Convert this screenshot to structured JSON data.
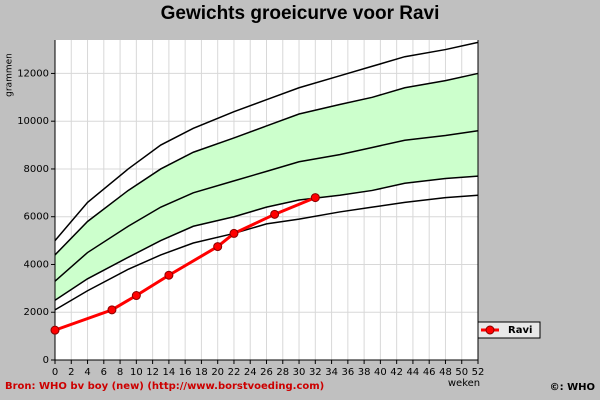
{
  "chart_data": {
    "type": "line",
    "title": "Gewichts groeicurve voor Ravi",
    "x_label": "weken",
    "y_label": "grammen",
    "xlim": [
      0,
      52
    ],
    "ylim": [
      0,
      13400
    ],
    "xticks": [
      0,
      2,
      4,
      6,
      8,
      10,
      12,
      14,
      16,
      18,
      20,
      22,
      24,
      26,
      28,
      30,
      32,
      34,
      36,
      38,
      40,
      42,
      44,
      46,
      48,
      50,
      52
    ],
    "yticks": [
      0,
      2000,
      4000,
      6000,
      8000,
      10000,
      12000
    ],
    "grid": true,
    "legend": "right",
    "band_color": "#ccffcc",
    "reference_curves": [
      {
        "color": "#000000",
        "x": [
          0,
          4,
          9,
          13,
          17,
          22,
          26,
          30,
          35,
          39,
          43,
          48,
          52
        ],
        "values": [
          5000,
          6600,
          8000,
          9000,
          9700,
          10400,
          10900,
          11400,
          11900,
          12300,
          12700,
          13000,
          13300
        ]
      },
      {
        "color": "#000000",
        "x": [
          0,
          4,
          9,
          13,
          17,
          22,
          26,
          30,
          35,
          39,
          43,
          48,
          52
        ],
        "values": [
          4400,
          5800,
          7100,
          8000,
          8700,
          9300,
          9800,
          10300,
          10700,
          11000,
          11400,
          11700,
          12000
        ]
      },
      {
        "color": "#000000",
        "x": [
          0,
          4,
          9,
          13,
          17,
          22,
          26,
          30,
          35,
          39,
          43,
          48,
          52
        ],
        "values": [
          3300,
          4500,
          5600,
          6400,
          7000,
          7500,
          7900,
          8300,
          8600,
          8900,
          9200,
          9400,
          9600
        ]
      },
      {
        "color": "#000000",
        "x": [
          0,
          4,
          9,
          13,
          17,
          22,
          26,
          30,
          35,
          39,
          43,
          48,
          52
        ],
        "values": [
          2500,
          3400,
          4300,
          5000,
          5600,
          6000,
          6400,
          6700,
          6900,
          7100,
          7400,
          7600,
          7700
        ]
      },
      {
        "color": "#000000",
        "x": [
          0,
          4,
          9,
          13,
          17,
          22,
          26,
          30,
          35,
          39,
          43,
          48,
          52
        ],
        "values": [
          2100,
          2900,
          3800,
          4400,
          4900,
          5300,
          5700,
          5900,
          6200,
          6400,
          6600,
          6800,
          6900
        ]
      }
    ],
    "series": [
      {
        "name": "Ravi",
        "color": "#ff0000",
        "x": [
          0,
          7,
          10,
          14,
          20,
          22,
          27,
          32
        ],
        "values": [
          1250,
          2100,
          2700,
          3550,
          4750,
          5300,
          6100,
          6800
        ]
      }
    ],
    "source": "Bron: WHO bv boy (new) (http://www.borstvoeding.com)",
    "copyright": "©: WHO"
  }
}
